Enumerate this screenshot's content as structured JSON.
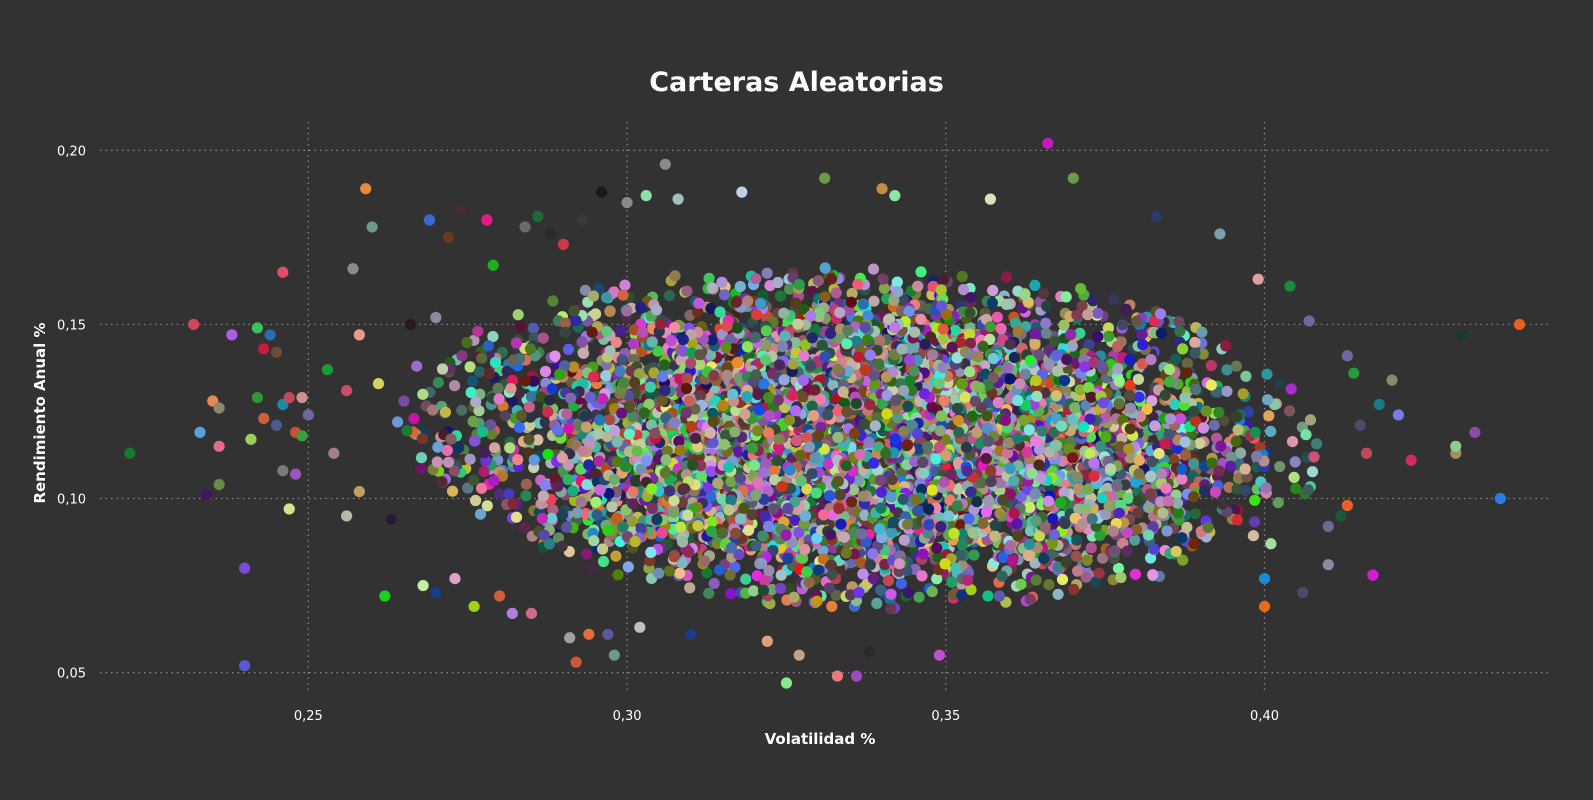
{
  "chart_data": {
    "type": "scatter",
    "title": "Carteras Aleatorias",
    "xlabel": "Volatilidad %",
    "ylabel": "Rendimiento Anual %",
    "xlim": [
      0.217,
      0.444
    ],
    "ylim": [
      0.045,
      0.207
    ],
    "x_ticks": [
      0.25,
      0.3,
      0.35,
      0.4
    ],
    "x_tick_labels": [
      "0,25",
      "0,30",
      "0,35",
      "0,40"
    ],
    "y_ticks": [
      0.05,
      0.1,
      0.15,
      0.2
    ],
    "y_tick_labels": [
      "0,05",
      "0,10",
      "0,15",
      "0,20"
    ],
    "grid": true,
    "legend": "none",
    "points": [
      [
        0.222,
        0.113,
        "#1a7a2a"
      ],
      [
        0.232,
        0.15,
        "#d2455c"
      ],
      [
        0.233,
        0.119,
        "#5aa0d8"
      ],
      [
        0.234,
        0.101,
        "#3a1a5a"
      ],
      [
        0.235,
        0.128,
        "#e8885a"
      ],
      [
        0.236,
        0.126,
        "#8a8a6a"
      ],
      [
        0.236,
        0.115,
        "#e86a8a"
      ],
      [
        0.236,
        0.104,
        "#6a8a4a"
      ],
      [
        0.238,
        0.147,
        "#b05ae8"
      ],
      [
        0.24,
        0.08,
        "#7a4ad8"
      ],
      [
        0.24,
        0.052,
        "#5a5ad8"
      ],
      [
        0.241,
        0.117,
        "#9ad05a"
      ],
      [
        0.242,
        0.129,
        "#2a9a3a"
      ],
      [
        0.242,
        0.149,
        "#3ac05a"
      ],
      [
        0.243,
        0.123,
        "#c8603a"
      ],
      [
        0.243,
        0.143,
        "#c81a3a"
      ],
      [
        0.244,
        0.147,
        "#2a6ab0"
      ],
      [
        0.245,
        0.142,
        "#6a4a3a"
      ],
      [
        0.245,
        0.121,
        "#4a5a8a"
      ],
      [
        0.246,
        0.127,
        "#1a8aa8"
      ],
      [
        0.246,
        0.108,
        "#7a7a7a"
      ],
      [
        0.246,
        0.165,
        "#e84a6a"
      ],
      [
        0.247,
        0.097,
        "#d8e08a"
      ],
      [
        0.247,
        0.129,
        "#c04a5a"
      ],
      [
        0.248,
        0.119,
        "#c8503a"
      ],
      [
        0.248,
        0.107,
        "#a050c0"
      ],
      [
        0.249,
        0.129,
        "#d09090"
      ],
      [
        0.249,
        0.118,
        "#3aa03a"
      ],
      [
        0.25,
        0.124,
        "#6a6aa0"
      ],
      [
        0.253,
        0.137,
        "#1a9a3a"
      ],
      [
        0.254,
        0.113,
        "#a08080"
      ],
      [
        0.256,
        0.131,
        "#d04a6a"
      ],
      [
        0.256,
        0.095,
        "#b8b8a8"
      ],
      [
        0.257,
        0.166,
        "#8a8a8a"
      ],
      [
        0.258,
        0.147,
        "#e89a8a"
      ],
      [
        0.258,
        0.102,
        "#c0a060"
      ],
      [
        0.259,
        0.189,
        "#e88a3a"
      ],
      [
        0.26,
        0.178,
        "#6a9a8a"
      ],
      [
        0.261,
        0.133,
        "#d8d060"
      ],
      [
        0.262,
        0.072,
        "#1ad01a"
      ],
      [
        0.263,
        0.094,
        "#2a1a3a"
      ],
      [
        0.264,
        0.122,
        "#6a9ad8"
      ],
      [
        0.265,
        0.128,
        "#7a4aa8"
      ],
      [
        0.266,
        0.15,
        "#2a1a1a"
      ],
      [
        0.267,
        0.138,
        "#a06ac8"
      ],
      [
        0.268,
        0.075,
        "#c0f0a0"
      ],
      [
        0.269,
        0.18,
        "#3a6ad8"
      ],
      [
        0.27,
        0.073,
        "#1a3a8a"
      ],
      [
        0.27,
        0.152,
        "#8a8aa0"
      ],
      [
        0.272,
        0.175,
        "#6a3a1a"
      ],
      [
        0.273,
        0.077,
        "#e0a0c8"
      ],
      [
        0.274,
        0.183,
        "#4a2a2a"
      ],
      [
        0.276,
        0.069,
        "#a0d01a"
      ],
      [
        0.278,
        0.18,
        "#e81a8a"
      ],
      [
        0.279,
        0.167,
        "#1ab01a"
      ],
      [
        0.28,
        0.072,
        "#d0603a"
      ],
      [
        0.282,
        0.067,
        "#b080d8"
      ],
      [
        0.284,
        0.178,
        "#6a6a6a"
      ],
      [
        0.285,
        0.067,
        "#d06a8a"
      ],
      [
        0.286,
        0.181,
        "#1a6a3a"
      ],
      [
        0.288,
        0.176,
        "#2a2a2a"
      ],
      [
        0.29,
        0.173,
        "#c83a4a"
      ],
      [
        0.291,
        0.06,
        "#a0a0a0"
      ],
      [
        0.292,
        0.053,
        "#c85a3a"
      ],
      [
        0.293,
        0.18,
        "#3a3a3a"
      ],
      [
        0.294,
        0.061,
        "#e86a3a"
      ],
      [
        0.296,
        0.188,
        "#1a1a1a"
      ],
      [
        0.297,
        0.061,
        "#5a5a9a"
      ],
      [
        0.298,
        0.055,
        "#6a9a8a"
      ],
      [
        0.3,
        0.185,
        "#8a8a8a"
      ],
      [
        0.302,
        0.063,
        "#c0c0c0"
      ],
      [
        0.303,
        0.187,
        "#8ae0a8"
      ],
      [
        0.306,
        0.196,
        "#8a8a8a"
      ],
      [
        0.308,
        0.186,
        "#a0c0c0"
      ],
      [
        0.31,
        0.061,
        "#1a3a8a"
      ],
      [
        0.318,
        0.188,
        "#c0d0e8"
      ],
      [
        0.322,
        0.059,
        "#e0a080"
      ],
      [
        0.325,
        0.047,
        "#8ae88a"
      ],
      [
        0.327,
        0.055,
        "#c8a080"
      ],
      [
        0.331,
        0.192,
        "#6a9a4a"
      ],
      [
        0.333,
        0.049,
        "#e87a7a"
      ],
      [
        0.336,
        0.049,
        "#a04ac0"
      ],
      [
        0.338,
        0.056,
        "#2a2a2a"
      ],
      [
        0.34,
        0.189,
        "#c09040"
      ],
      [
        0.342,
        0.187,
        "#8ae8a0"
      ],
      [
        0.349,
        0.055,
        "#c050d0"
      ],
      [
        0.357,
        0.186,
        "#e0e0c0"
      ],
      [
        0.366,
        0.202,
        "#c01ac0"
      ],
      [
        0.37,
        0.192,
        "#6a9a4a"
      ],
      [
        0.383,
        0.181,
        "#2a3a6a"
      ],
      [
        0.393,
        0.176,
        "#7aa0b0"
      ],
      [
        0.399,
        0.163,
        "#e0a0a0"
      ],
      [
        0.4,
        0.069,
        "#e86a1a"
      ],
      [
        0.4,
        0.077,
        "#1a8ad8"
      ],
      [
        0.401,
        0.087,
        "#a0e0a0"
      ],
      [
        0.404,
        0.161,
        "#1a8a3a"
      ],
      [
        0.406,
        0.073,
        "#4a4a6a"
      ],
      [
        0.407,
        0.151,
        "#6a6aa0"
      ],
      [
        0.41,
        0.092,
        "#6a6a8a"
      ],
      [
        0.41,
        0.081,
        "#8a8aa0"
      ],
      [
        0.412,
        0.095,
        "#1a5a3a"
      ],
      [
        0.413,
        0.098,
        "#e8602a"
      ],
      [
        0.413,
        0.141,
        "#6a6aa0"
      ],
      [
        0.414,
        0.136,
        "#2a9a3a"
      ],
      [
        0.415,
        0.121,
        "#4a4a6a"
      ],
      [
        0.416,
        0.113,
        "#c04a5a"
      ],
      [
        0.417,
        0.078,
        "#d81ad8"
      ],
      [
        0.418,
        0.127,
        "#1a7a8a"
      ],
      [
        0.42,
        0.134,
        "#8a8a6a"
      ],
      [
        0.421,
        0.124,
        "#7a7ae8"
      ],
      [
        0.423,
        0.111,
        "#d02a6a"
      ],
      [
        0.43,
        0.113,
        "#a09060"
      ],
      [
        0.43,
        0.115,
        "#8ad08a"
      ],
      [
        0.431,
        0.147,
        "#1a3a2a"
      ],
      [
        0.433,
        0.119,
        "#8a4aa8"
      ],
      [
        0.437,
        0.1,
        "#2a7ae8"
      ],
      [
        0.44,
        0.15,
        "#e8601a"
      ]
    ]
  }
}
